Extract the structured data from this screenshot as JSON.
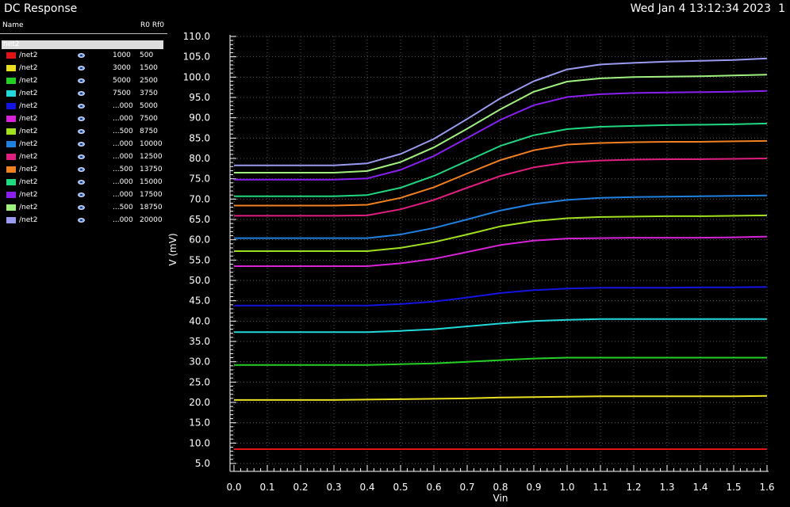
{
  "window": {
    "title": "DC Response",
    "datestamp": "Wed Jan 4 13:12:34 2023",
    "page": "1"
  },
  "legend": {
    "name_header": "Name",
    "cols_header": "R0 Rf0",
    "group_label": "net2",
    "items": [
      {
        "label": "/net2",
        "r0": "1000",
        "rf0": "500",
        "color": "#e01414"
      },
      {
        "label": "/net2",
        "r0": "3000",
        "rf0": "1500",
        "color": "#e8e020"
      },
      {
        "label": "/net2",
        "r0": "5000",
        "rf0": "2500",
        "color": "#24d024"
      },
      {
        "label": "/net2",
        "r0": "7500",
        "rf0": "3750",
        "color": "#22d8d8"
      },
      {
        "label": "/net2",
        "r0": "...000",
        "rf0": "5000",
        "color": "#1414e0"
      },
      {
        "label": "/net2",
        "r0": "...000",
        "rf0": "7500",
        "color": "#d822d8"
      },
      {
        "label": "/net2",
        "r0": "...500",
        "rf0": "8750",
        "color": "#a0e020"
      },
      {
        "label": "/net2",
        "r0": "...000",
        "rf0": "10000",
        "color": "#2080e0"
      },
      {
        "label": "/net2",
        "r0": "...000",
        "rf0": "12500",
        "color": "#e01e80"
      },
      {
        "label": "/net2",
        "r0": "...500",
        "rf0": "13750",
        "color": "#f08020"
      },
      {
        "label": "/net2",
        "r0": "...000",
        "rf0": "15000",
        "color": "#20d880"
      },
      {
        "label": "/net2",
        "r0": "...000",
        "rf0": "17500",
        "color": "#8a20f0"
      },
      {
        "label": "/net2",
        "r0": "...500",
        "rf0": "18750",
        "color": "#a0f080"
      },
      {
        "label": "/net2",
        "r0": "...000",
        "rf0": "20000",
        "color": "#9a9af0"
      }
    ]
  },
  "chart_data": {
    "type": "line",
    "xlabel": "Vin",
    "ylabel": "V (mV)",
    "xlim": [
      0.0,
      1.6
    ],
    "ylim": [
      5.0,
      110.0
    ],
    "xticks": [
      "0.0",
      "0.1",
      "0.2",
      "0.3",
      "0.4",
      "0.5",
      "0.6",
      "0.7",
      "0.8",
      "0.9",
      "1.0",
      "1.1",
      "1.2",
      "1.3",
      "1.4",
      "1.5",
      "1.6"
    ],
    "yticks": [
      "5.0",
      "10.0",
      "15.0",
      "20.0",
      "25.0",
      "30.0",
      "35.0",
      "40.0",
      "45.0",
      "50.0",
      "55.0",
      "60.0",
      "65.0",
      "70.0",
      "75.0",
      "80.0",
      "85.0",
      "90.0",
      "95.0",
      "100.0",
      "105.0",
      "110.0"
    ],
    "grid": true,
    "x": [
      0.0,
      0.1,
      0.2,
      0.3,
      0.4,
      0.5,
      0.6,
      0.7,
      0.8,
      0.9,
      1.0,
      1.1,
      1.2,
      1.3,
      1.4,
      1.5,
      1.6
    ],
    "series": [
      {
        "color": "#e01414",
        "values": [
          8.5,
          8.5,
          8.5,
          8.5,
          8.5,
          8.5,
          8.5,
          8.5,
          8.5,
          8.5,
          8.5,
          8.5,
          8.5,
          8.5,
          8.5,
          8.5,
          8.5
        ]
      },
      {
        "color": "#e8e020",
        "values": [
          20.6,
          20.6,
          20.6,
          20.6,
          20.7,
          20.8,
          20.9,
          21.0,
          21.2,
          21.3,
          21.4,
          21.5,
          21.5,
          21.5,
          21.5,
          21.5,
          21.6
        ]
      },
      {
        "color": "#24d024",
        "values": [
          29.2,
          29.2,
          29.2,
          29.2,
          29.2,
          29.4,
          29.6,
          30.0,
          30.4,
          30.8,
          31.0,
          31.0,
          31.0,
          31.0,
          31.0,
          31.0,
          31.0
        ]
      },
      {
        "color": "#22d8d8",
        "values": [
          37.3,
          37.3,
          37.3,
          37.3,
          37.3,
          37.6,
          38.0,
          38.7,
          39.4,
          40.0,
          40.3,
          40.5,
          40.5,
          40.5,
          40.5,
          40.5,
          40.5
        ]
      },
      {
        "color": "#1414e0",
        "values": [
          43.8,
          43.8,
          43.8,
          43.8,
          43.8,
          44.2,
          44.8,
          45.8,
          46.9,
          47.6,
          48.0,
          48.2,
          48.2,
          48.2,
          48.3,
          48.3,
          48.4
        ]
      },
      {
        "color": "#d822d8",
        "values": [
          53.5,
          53.5,
          53.5,
          53.5,
          53.5,
          54.2,
          55.3,
          57.0,
          58.7,
          59.8,
          60.3,
          60.4,
          60.5,
          60.5,
          60.5,
          60.6,
          60.8
        ]
      },
      {
        "color": "#a0e020",
        "values": [
          57.2,
          57.2,
          57.2,
          57.2,
          57.2,
          58.0,
          59.4,
          61.3,
          63.3,
          64.6,
          65.3,
          65.6,
          65.7,
          65.8,
          65.8,
          65.9,
          66.0
        ]
      },
      {
        "color": "#2080e0",
        "values": [
          60.4,
          60.4,
          60.4,
          60.4,
          60.4,
          61.3,
          62.9,
          65.0,
          67.2,
          68.8,
          69.8,
          70.3,
          70.5,
          70.6,
          70.7,
          70.8,
          70.9
        ]
      },
      {
        "color": "#e01e80",
        "values": [
          65.9,
          65.9,
          65.9,
          65.9,
          66.0,
          67.5,
          69.8,
          72.8,
          75.7,
          77.8,
          79.0,
          79.5,
          79.7,
          79.8,
          79.8,
          79.9,
          80.0
        ]
      },
      {
        "color": "#f08020",
        "values": [
          68.4,
          68.4,
          68.4,
          68.4,
          68.6,
          70.3,
          72.9,
          76.3,
          79.6,
          82.0,
          83.4,
          83.8,
          84.0,
          84.1,
          84.1,
          84.2,
          84.3
        ]
      },
      {
        "color": "#20d880",
        "values": [
          70.7,
          70.7,
          70.7,
          70.7,
          71.0,
          72.8,
          75.7,
          79.4,
          83.1,
          85.7,
          87.2,
          87.8,
          88.0,
          88.2,
          88.3,
          88.4,
          88.6
        ]
      },
      {
        "color": "#8a20f0",
        "values": [
          74.8,
          74.8,
          74.8,
          74.8,
          75.1,
          77.2,
          80.6,
          85.0,
          89.5,
          93.1,
          95.1,
          95.8,
          96.1,
          96.2,
          96.3,
          96.4,
          96.6
        ]
      },
      {
        "color": "#a0f080",
        "values": [
          76.5,
          76.5,
          76.5,
          76.5,
          76.9,
          79.1,
          82.7,
          87.3,
          92.1,
          96.4,
          98.9,
          99.7,
          100.0,
          100.1,
          100.2,
          100.4,
          100.6
        ]
      },
      {
        "color": "#9a9af0",
        "values": [
          78.3,
          78.3,
          78.3,
          78.3,
          78.8,
          81.1,
          84.8,
          89.7,
          94.8,
          99.0,
          101.9,
          103.1,
          103.5,
          103.8,
          104.0,
          104.2,
          104.6
        ]
      }
    ]
  }
}
